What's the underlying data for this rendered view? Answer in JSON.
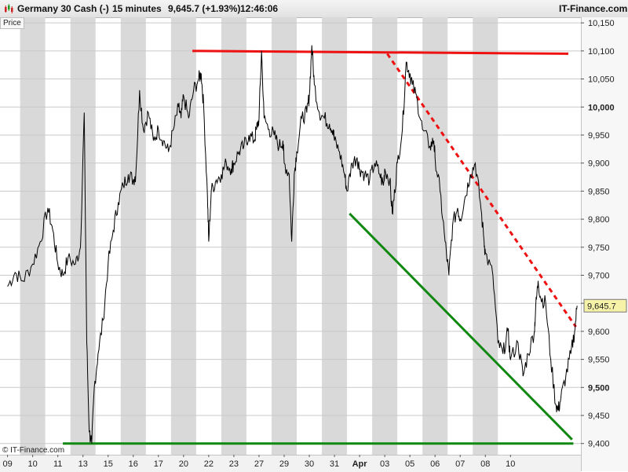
{
  "header": {
    "instrument": "Germany 30 Cash (-)",
    "timeframe": "15 minutes",
    "last": "9,645.7 (+1.93%)",
    "time": "12:46:06",
    "brand": "IT-Finance.com"
  },
  "price_tab": "Price",
  "copyright": "© IT-Finance.com",
  "colors": {
    "resistance": "#ee1111",
    "support": "#118811",
    "price_line": "#000000",
    "band": "#d9d9d9",
    "marker_bg": "#f6f3a8"
  },
  "chart_data": {
    "type": "line",
    "series": [
      {
        "points": [
          [
            0.0,
            9680
          ],
          [
            0.3,
            9705
          ],
          [
            0.6,
            9690
          ],
          [
            1.0,
            9720
          ],
          [
            1.3,
            9760
          ],
          [
            1.6,
            9820
          ],
          [
            1.8,
            9780
          ],
          [
            2.0,
            9720
          ],
          [
            2.2,
            9700
          ],
          [
            2.4,
            9730
          ],
          [
            2.7,
            9720
          ],
          [
            2.9,
            9750
          ],
          [
            3.05,
            9990
          ],
          [
            3.15,
            9580
          ],
          [
            3.25,
            9420
          ],
          [
            3.35,
            9400
          ],
          [
            3.45,
            9500
          ],
          [
            3.6,
            9560
          ],
          [
            3.8,
            9620
          ],
          [
            4.0,
            9720
          ],
          [
            4.2,
            9780
          ],
          [
            4.4,
            9830
          ],
          [
            4.6,
            9860
          ],
          [
            4.8,
            9880
          ],
          [
            5.0,
            9870
          ],
          [
            5.1,
            9880
          ],
          [
            5.25,
            10030
          ],
          [
            5.4,
            9960
          ],
          [
            5.6,
            9990
          ],
          [
            5.8,
            9940
          ],
          [
            6.0,
            9960
          ],
          [
            6.2,
            9940
          ],
          [
            6.4,
            9920
          ],
          [
            6.6,
            9960
          ],
          [
            6.8,
            10000
          ],
          [
            6.9,
            9980
          ],
          [
            7.0,
            10020
          ],
          [
            7.2,
            9980
          ],
          [
            7.4,
            10030
          ],
          [
            7.6,
            10050
          ],
          [
            7.7,
            10060
          ],
          [
            7.8,
            10000
          ],
          [
            7.95,
            9840
          ],
          [
            8.0,
            9760
          ],
          [
            8.1,
            9850
          ],
          [
            8.3,
            9870
          ],
          [
            8.5,
            9880
          ],
          [
            8.7,
            9900
          ],
          [
            8.9,
            9890
          ],
          [
            9.0,
            9900
          ],
          [
            9.2,
            9920
          ],
          [
            9.4,
            9930
          ],
          [
            9.6,
            9950
          ],
          [
            9.8,
            9940
          ],
          [
            9.9,
            9960
          ],
          [
            10.0,
            9980
          ],
          [
            10.1,
            10100
          ],
          [
            10.2,
            9980
          ],
          [
            10.4,
            9960
          ],
          [
            10.6,
            9950
          ],
          [
            10.8,
            9930
          ],
          [
            10.95,
            9940
          ],
          [
            11.0,
            9900
          ],
          [
            11.2,
            9880
          ],
          [
            11.3,
            9760
          ],
          [
            11.4,
            9880
          ],
          [
            11.5,
            9920
          ],
          [
            11.7,
            9980
          ],
          [
            11.9,
            9990
          ],
          [
            12.0,
            10020
          ],
          [
            12.1,
            10110
          ],
          [
            12.2,
            10040
          ],
          [
            12.4,
            9990
          ],
          [
            12.6,
            9980
          ],
          [
            12.8,
            9970
          ],
          [
            12.95,
            9960
          ],
          [
            13.0,
            9940
          ],
          [
            13.2,
            9920
          ],
          [
            13.4,
            9880
          ],
          [
            13.5,
            9850
          ],
          [
            13.7,
            9900
          ],
          [
            13.9,
            9910
          ],
          [
            14.0,
            9890
          ],
          [
            14.2,
            9880
          ],
          [
            14.4,
            9870
          ],
          [
            14.6,
            9900
          ],
          [
            14.8,
            9880
          ],
          [
            14.95,
            9860
          ],
          [
            15.0,
            9890
          ],
          [
            15.2,
            9870
          ],
          [
            15.3,
            9810
          ],
          [
            15.4,
            9850
          ],
          [
            15.5,
            9900
          ],
          [
            15.7,
            9960
          ],
          [
            15.85,
            10080
          ],
          [
            16.0,
            10060
          ],
          [
            16.1,
            10040
          ],
          [
            16.3,
            10010
          ],
          [
            16.5,
            9960
          ],
          [
            16.8,
            9930
          ],
          [
            16.95,
            9940
          ],
          [
            17.0,
            9910
          ],
          [
            17.2,
            9850
          ],
          [
            17.4,
            9760
          ],
          [
            17.55,
            9700
          ],
          [
            17.7,
            9790
          ],
          [
            17.9,
            9820
          ],
          [
            18.0,
            9800
          ],
          [
            18.2,
            9840
          ],
          [
            18.4,
            9880
          ],
          [
            18.6,
            9900
          ],
          [
            18.8,
            9830
          ],
          [
            18.95,
            9760
          ],
          [
            19.0,
            9740
          ],
          [
            19.3,
            9700
          ],
          [
            19.5,
            9580
          ],
          [
            19.7,
            9560
          ],
          [
            19.9,
            9600
          ],
          [
            20.0,
            9550
          ],
          [
            20.3,
            9580
          ],
          [
            20.5,
            9520
          ],
          [
            20.7,
            9560
          ],
          [
            20.95,
            9600
          ],
          [
            21.0,
            9640
          ],
          [
            21.1,
            9690
          ],
          [
            21.2,
            9660
          ],
          [
            21.4,
            9650
          ],
          [
            21.6,
            9550
          ],
          [
            21.8,
            9470
          ],
          [
            21.9,
            9460
          ],
          [
            22.0,
            9480
          ],
          [
            22.2,
            9520
          ],
          [
            22.4,
            9560
          ],
          [
            22.55,
            9600
          ],
          [
            22.65,
            9645.7
          ]
        ]
      }
    ],
    "x_tick_labels": [
      "09",
      "10",
      "11",
      "13",
      "15",
      "16",
      "17",
      "20",
      "22",
      "23",
      "27",
      "29",
      "30",
      "31",
      "Apr",
      "03",
      "05",
      "06",
      "07",
      "08",
      "10"
    ],
    "y_ticks": [
      9400,
      9450,
      9500,
      9550,
      9600,
      9650,
      9700,
      9750,
      9800,
      9850,
      9900,
      9950,
      10000,
      10050,
      10100,
      10150
    ],
    "y_tick_labels": [
      "9,400",
      "9,450",
      "9,500",
      "9,550",
      "9,600",
      "9,650",
      "9,700",
      "9,750",
      "9,800",
      "9,850",
      "9,900",
      "9,950",
      "10,000",
      "10,050",
      "10,100",
      "10,150"
    ],
    "ylim": [
      9380,
      10160
    ],
    "xlim": [
      -0.3,
      22.8
    ],
    "last_value": 9645.7,
    "last_value_label": "9,645.7",
    "trendlines": [
      {
        "name": "resistance-horizontal",
        "style": "solid",
        "color": "#ee1111",
        "from": [
          7.35,
          10100
        ],
        "to": [
          22.3,
          10095
        ]
      },
      {
        "name": "resistance-descending",
        "style": "dashed",
        "color": "#ee1111",
        "from": [
          15.1,
          10095
        ],
        "to": [
          22.6,
          9608
        ]
      },
      {
        "name": "support-descending",
        "style": "solid",
        "color": "#118811",
        "from": [
          13.6,
          9810
        ],
        "to": [
          22.45,
          9407
        ]
      },
      {
        "name": "support-horizontal",
        "style": "solid",
        "color": "#118811",
        "from": [
          2.2,
          9400
        ],
        "to": [
          22.5,
          9400
        ]
      }
    ],
    "grid": true
  }
}
